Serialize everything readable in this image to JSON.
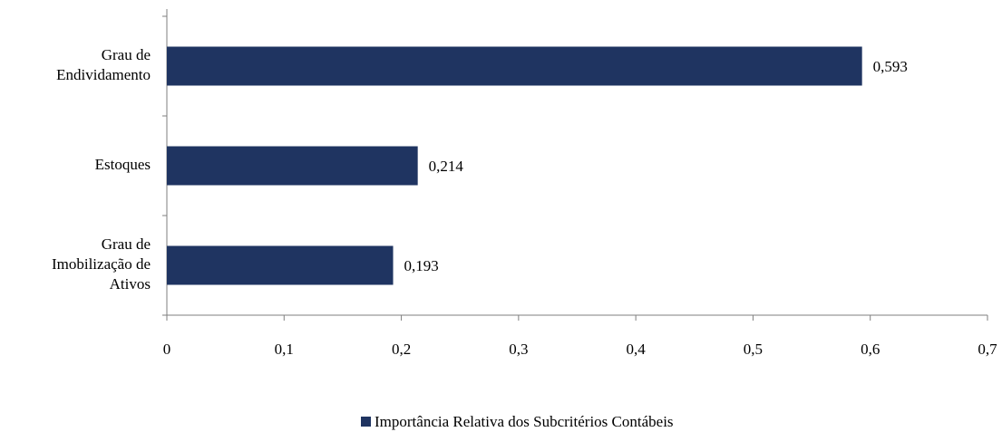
{
  "chart_data": {
    "type": "barh",
    "categories": [
      "Grau de Endividamento",
      "Estoques",
      "Grau de Imobilização de Ativos"
    ],
    "series": [
      {
        "name": "Importância Relativa dos Subcritérios Contábeis",
        "color": "#1f3461",
        "values": [
          0.593,
          0.214,
          0.193
        ],
        "value_labels": [
          "0,593",
          "0,214",
          "0,193"
        ]
      }
    ],
    "xlim": [
      0,
      0.7
    ],
    "xticks": [
      0,
      {
        "value": 0.1,
        "label": "0,1"
      },
      {
        "value": 0.2,
        "label": "0,2"
      },
      {
        "value": 0.3,
        "label": "0,3"
      },
      {
        "value": 0.4,
        "label": "0,4"
      },
      {
        "value": 0.5,
        "label": "0,5"
      },
      {
        "value": 0.6,
        "label": "0,6"
      },
      {
        "value": 0.7,
        "label": "0,7"
      }
    ],
    "legend": "bottom"
  }
}
